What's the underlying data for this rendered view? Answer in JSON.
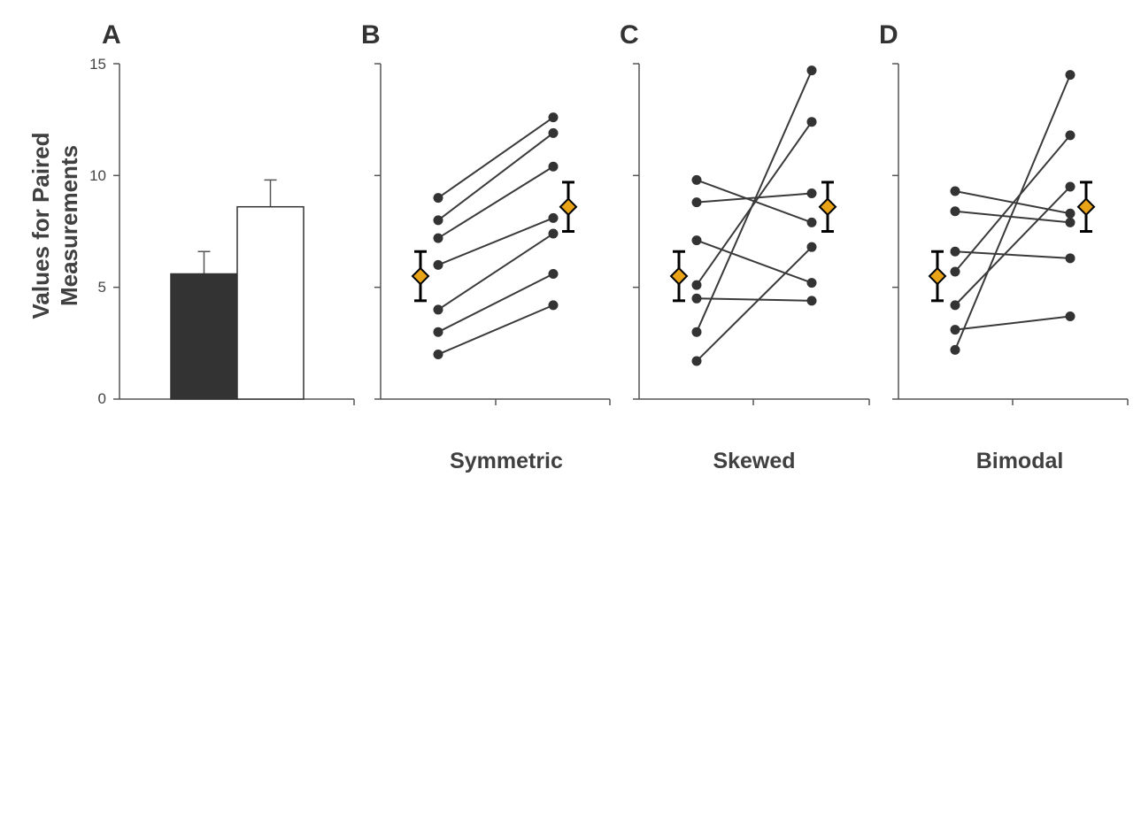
{
  "chart_data": [
    {
      "panel": "A",
      "type": "bar",
      "ylabel": [
        "Values for Paired",
        "Measurements"
      ],
      "ylim": [
        0,
        15
      ],
      "yticks": [
        0,
        5,
        10,
        15
      ],
      "categories": [
        "",
        ""
      ],
      "values": [
        5.6,
        8.6
      ],
      "errors": [
        1.0,
        1.2
      ],
      "colors": [
        "#333333",
        "#ffffff"
      ]
    },
    {
      "panel": "B",
      "type": "line",
      "xlabel": "Symmetric",
      "ylim": [
        0,
        15
      ],
      "pairs": [
        [
          9.0,
          12.6
        ],
        [
          8.0,
          11.9
        ],
        [
          7.2,
          10.4
        ],
        [
          6.0,
          8.1
        ],
        [
          4.0,
          7.4
        ],
        [
          3.0,
          5.6
        ],
        [
          2.0,
          4.2
        ]
      ],
      "means": [
        5.5,
        8.6
      ],
      "mean_errors": [
        1.1,
        1.1
      ],
      "mean_color": "#e8a317"
    },
    {
      "panel": "C",
      "type": "line",
      "xlabel": "Skewed",
      "ylim": [
        0,
        15
      ],
      "pairs": [
        [
          9.8,
          7.9
        ],
        [
          8.8,
          9.2
        ],
        [
          7.1,
          5.2
        ],
        [
          5.1,
          12.4
        ],
        [
          4.5,
          4.4
        ],
        [
          3.0,
          14.7
        ],
        [
          1.7,
          6.8
        ]
      ],
      "means": [
        5.5,
        8.6
      ],
      "mean_errors": [
        1.1,
        1.1
      ],
      "mean_color": "#e8a317"
    },
    {
      "panel": "D",
      "type": "line",
      "xlabel": "Bimodal",
      "ylim": [
        0,
        15
      ],
      "pairs": [
        [
          9.3,
          8.3
        ],
        [
          8.4,
          7.9
        ],
        [
          6.6,
          6.3
        ],
        [
          5.7,
          11.8
        ],
        [
          4.2,
          9.5
        ],
        [
          3.1,
          3.7
        ],
        [
          2.2,
          14.5
        ]
      ],
      "means": [
        5.5,
        8.6
      ],
      "mean_errors": [
        1.1,
        1.1
      ],
      "mean_color": "#e8a317"
    }
  ]
}
